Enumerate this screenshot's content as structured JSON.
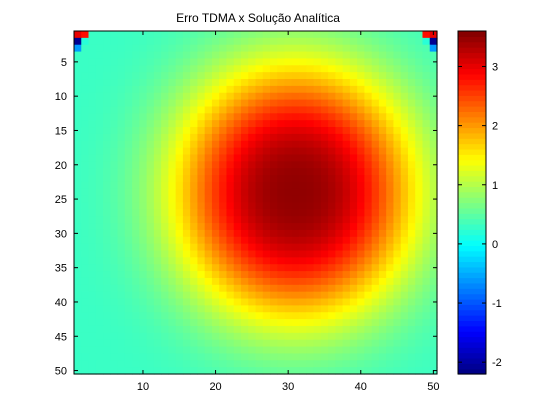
{
  "chart_data": {
    "type": "heatmap",
    "title": "Erro TDMA x Solução Analítica",
    "xlabel": "",
    "ylabel": "",
    "colormap": "jet",
    "grid": false,
    "xlim": [
      0.5,
      50.5
    ],
    "ylim": [
      0.5,
      50.5
    ],
    "y_direction": "reversed",
    "x_ticks": [
      10,
      20,
      30,
      40,
      50
    ],
    "y_ticks": [
      5,
      10,
      15,
      20,
      25,
      30,
      35,
      40,
      45,
      50
    ],
    "x_tick_labels": [
      "10",
      "20",
      "30",
      "40",
      "50"
    ],
    "y_tick_labels": [
      "5",
      "10",
      "15",
      "20",
      "25",
      "30",
      "35",
      "40",
      "45",
      "50"
    ],
    "colorbar": {
      "range": [
        -2.2,
        3.6
      ],
      "ticks": [
        -2,
        -1,
        0,
        1,
        2,
        3
      ],
      "tick_labels": [
        "-2",
        "-1",
        "0",
        "1",
        "2",
        "3"
      ]
    },
    "grid_size": [
      50,
      50
    ],
    "background_value": 0.3,
    "peak": {
      "value": 3.5,
      "row": 24,
      "col": 31
    },
    "corner_values": [
      {
        "row": 1,
        "col": 1,
        "value": 3.0
      },
      {
        "row": 1,
        "col": 2,
        "value": 2.8
      },
      {
        "row": 2,
        "col": 1,
        "value": -2.1
      },
      {
        "row": 3,
        "col": 1,
        "value": -0.6
      },
      {
        "row": 2,
        "col": 2,
        "value": 0.2
      },
      {
        "row": 1,
        "col": 49,
        "value": 2.8
      },
      {
        "row": 1,
        "col": 50,
        "value": 3.0
      },
      {
        "row": 2,
        "col": 50,
        "value": -2.1
      },
      {
        "row": 3,
        "col": 50,
        "value": -0.6
      },
      {
        "row": 2,
        "col": 49,
        "value": 0.2
      }
    ]
  }
}
